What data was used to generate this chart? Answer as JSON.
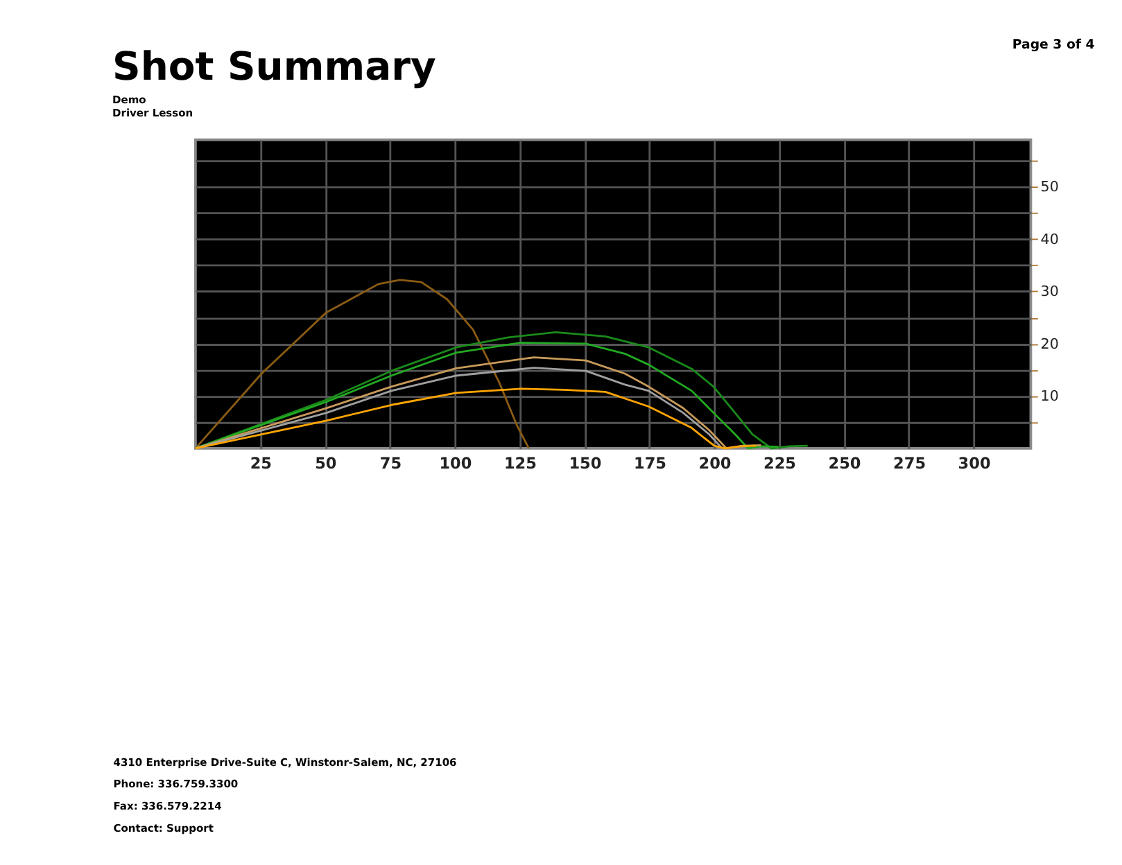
{
  "chart_data": {
    "type": "line",
    "title": "Shot Summary",
    "subtitle": [
      "Demo",
      "Driver Lesson"
    ],
    "annotations": [
      "Page 3 of 4",
      "4310 Enterprise Drive-Suite C, Winstonr-Salem, NC, 27106",
      "Phone: 336.759.3300",
      "Fax: 336.579.2214",
      "Contact: Support"
    ],
    "xlim": [
      0,
      322
    ],
    "ylim": [
      0,
      59
    ],
    "xticks": [
      25,
      50,
      75,
      100,
      125,
      150,
      175,
      200,
      225,
      250,
      275,
      300
    ],
    "yticks": [
      {
        "value": 5,
        "label": null
      },
      10,
      {
        "value": 15,
        "label": null
      },
      20,
      {
        "value": 25,
        "label": null
      },
      30,
      {
        "value": 35,
        "label": null
      },
      40,
      {
        "value": 45,
        "label": null
      },
      50,
      {
        "value": 55,
        "label": null
      }
    ],
    "grid": true,
    "legend": false,
    "marker": "none",
    "line_style": "solid",
    "series": [
      {
        "color": "#8a5c14",
        "x": [
          0,
          25.5,
          50.5,
          70.5,
          78.8,
          87,
          97,
          107,
          117,
          124,
          128.5
        ],
        "values": [
          0,
          14.3,
          26,
          31.4,
          32.2,
          31.8,
          28.5,
          22.7,
          12.7,
          4.3,
          0
        ]
      },
      {
        "color": "#1a8a1a",
        "x": [
          0,
          50.5,
          75.5,
          100.5,
          120.5,
          138.8,
          158,
          174.7,
          191.3,
          199.7,
          208,
          214.7,
          222,
          229,
          236
        ],
        "values": [
          0,
          9.3,
          14.8,
          19.3,
          21.2,
          22.2,
          21.4,
          19.3,
          15.2,
          11.8,
          6.8,
          2.7,
          0,
          0.4,
          0.5
        ]
      },
      {
        "color": "#22aa22",
        "x": [
          0,
          50.5,
          75.5,
          100.5,
          125.5,
          150.5,
          165.5,
          174.7,
          191.3,
          201.3,
          208,
          213,
          218,
          224.7
        ],
        "values": [
          0,
          8.9,
          13.9,
          18.3,
          20.2,
          20,
          18.1,
          16,
          11,
          6,
          2.7,
          0,
          0.4,
          0.3
        ]
      },
      {
        "color": "#c89a5a",
        "x": [
          0,
          50.5,
          75.5,
          100.5,
          130.5,
          150.5,
          165.5,
          174.7,
          188,
          198,
          204.7,
          211,
          218
        ],
        "values": [
          0,
          7.7,
          11.8,
          15.3,
          17.4,
          16.8,
          14.3,
          11.8,
          7.7,
          3.5,
          0,
          0.5,
          0.6
        ]
      },
      {
        "color": "#a0a0a0",
        "x": [
          0,
          50.5,
          75.5,
          100.5,
          130.5,
          150.5,
          165.5,
          174.7,
          188,
          198,
          203
        ],
        "values": [
          0,
          6.8,
          11,
          13.9,
          15.4,
          14.8,
          12.2,
          11,
          6.8,
          2.7,
          0
        ]
      },
      {
        "color": "#ffa500",
        "x": [
          0,
          50.5,
          75.5,
          100.5,
          125.5,
          142,
          158,
          174.7,
          191,
          200,
          204,
          210,
          216
        ],
        "values": [
          0,
          5.3,
          8.3,
          10.6,
          11.4,
          11.2,
          10.8,
          8,
          4,
          0.5,
          0,
          0.4,
          0.5
        ]
      }
    ]
  }
}
